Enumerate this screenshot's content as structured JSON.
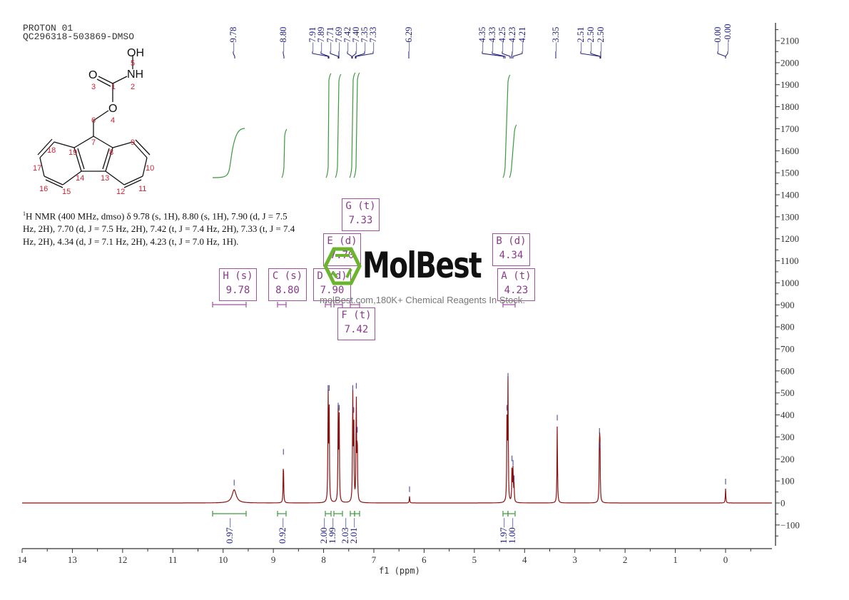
{
  "header": {
    "line1": "PROTON 01",
    "line2": "QC296318-503869-DMSO"
  },
  "structure": {
    "name": "fmoc-hydroxylamine-structure",
    "atoms": {
      "OH": "OH",
      "NH": "NH",
      "O_carbonyl": "O",
      "O_ester": "O",
      "labels": [
        "1",
        "2",
        "3",
        "4",
        "5",
        "6",
        "7",
        "8",
        "9",
        "10",
        "11",
        "12",
        "13",
        "14",
        "15",
        "16",
        "17",
        "18",
        "19"
      ]
    }
  },
  "description": {
    "prefix_sup": "1",
    "text": "H NMR (400 MHz, dmso) δ 9.78 (s, 1H), 8.80 (s, 1H), 7.90 (d, J = 7.5 Hz, 2H), 7.70 (d, J = 7.5 Hz, 2H), 7.42 (t, J = 7.4 Hz, 2H), 7.33 (t, J = 7.4 Hz, 2H), 4.34 (d, J = 7.1 Hz, 2H), 4.23 (t, J = 7.0 Hz, 1H)."
  },
  "peak_labels": [
    {
      "text": "9.78",
      "ppm": 9.78
    },
    {
      "text": "8.80",
      "ppm": 8.8
    },
    {
      "text": "7.91",
      "ppm": 7.91
    },
    {
      "text": "7.89",
      "ppm": 7.89
    },
    {
      "text": "7.71",
      "ppm": 7.71
    },
    {
      "text": "7.69",
      "ppm": 7.69
    },
    {
      "text": "7.42",
      "ppm": 7.42
    },
    {
      "text": "7.40",
      "ppm": 7.4
    },
    {
      "text": "7.35",
      "ppm": 7.35
    },
    {
      "text": "7.33",
      "ppm": 7.33
    },
    {
      "text": "6.29",
      "ppm": 6.29
    },
    {
      "text": "4.35",
      "ppm": 4.35
    },
    {
      "text": "4.33",
      "ppm": 4.33
    },
    {
      "text": "4.25",
      "ppm": 4.25
    },
    {
      "text": "4.23",
      "ppm": 4.23
    },
    {
      "text": "4.21",
      "ppm": 4.21
    },
    {
      "text": "3.35",
      "ppm": 3.35
    },
    {
      "text": "2.51",
      "ppm": 2.51
    },
    {
      "text": "2.50",
      "ppm": 2.5
    },
    {
      "text": "2.50",
      "ppm": 2.5
    },
    {
      "text": "0.00",
      "ppm": 0.0
    },
    {
      "text": "-0.00",
      "ppm": -0.0
    }
  ],
  "multiplet_boxes": [
    {
      "id": "H",
      "line1": "H (s)",
      "line2": "9.78"
    },
    {
      "id": "C",
      "line1": "C (s)",
      "line2": "8.80"
    },
    {
      "id": "D",
      "line1": "D (d)",
      "line2": "7.90"
    },
    {
      "id": "E",
      "line1": "E (d)",
      "line2": "7.70"
    },
    {
      "id": "G",
      "line1": "G (t)",
      "line2": "7.33"
    },
    {
      "id": "F",
      "line1": "F (t)",
      "line2": "7.42"
    },
    {
      "id": "B",
      "line1": "B (d)",
      "line2": "4.34"
    },
    {
      "id": "A",
      "line1": "A (t)",
      "line2": "4.23"
    }
  ],
  "integrals": [
    {
      "text": "0.97",
      "ppm": 9.78
    },
    {
      "text": "0.92",
      "ppm": 8.8
    },
    {
      "text": "2.00",
      "ppm": 7.9
    },
    {
      "text": "1.99",
      "ppm": 7.7
    },
    {
      "text": "2.03",
      "ppm": 7.42
    },
    {
      "text": "2.01",
      "ppm": 7.33
    },
    {
      "text": "1.97",
      "ppm": 4.34
    },
    {
      "text": "1.00",
      "ppm": 4.23
    }
  ],
  "watermark": {
    "brand": "MolBest",
    "tagline": "molBest.com,180K+ Chemical Reagents In Stock.",
    "logo_color": "#6ab42e"
  },
  "colors": {
    "spectrum": "#8b1010",
    "integral": "#3c9a3c",
    "peak_label": "#1a1a7a",
    "multiplet_box": "#a050a0",
    "axis": "#333333"
  },
  "chart_data": {
    "type": "line",
    "title": "PROTON 01 — QC296318-503869-DMSO",
    "xlabel": "f1 (ppm)",
    "ylabel": "",
    "xlim": [
      14,
      -1
    ],
    "ylim": [
      -200,
      2150
    ],
    "x_reversed": true,
    "x_ticks": [
      14,
      13,
      12,
      11,
      10,
      9,
      8,
      7,
      6,
      5,
      4,
      3,
      2,
      1,
      0
    ],
    "y_ticks": [
      2100,
      2000,
      1900,
      1800,
      1700,
      1600,
      1500,
      1400,
      1300,
      1200,
      1100,
      1000,
      900,
      800,
      700,
      600,
      500,
      400,
      300,
      200,
      100,
      0,
      -100
    ],
    "peaks": [
      {
        "ppm": 9.78,
        "intensity": 60
      },
      {
        "ppm": 8.8,
        "intensity": 200
      },
      {
        "ppm": 7.91,
        "intensity": 490
      },
      {
        "ppm": 7.89,
        "intensity": 490
      },
      {
        "ppm": 7.71,
        "intensity": 410
      },
      {
        "ppm": 7.69,
        "intensity": 400
      },
      {
        "ppm": 7.42,
        "intensity": 490
      },
      {
        "ppm": 7.4,
        "intensity": 390
      },
      {
        "ppm": 7.35,
        "intensity": 500
      },
      {
        "ppm": 7.33,
        "intensity": 300
      },
      {
        "ppm": 6.29,
        "intensity": 30
      },
      {
        "ppm": 4.35,
        "intensity": 400
      },
      {
        "ppm": 4.33,
        "intensity": 545
      },
      {
        "ppm": 4.25,
        "intensity": 170
      },
      {
        "ppm": 4.23,
        "intensity": 150
      },
      {
        "ppm": 4.21,
        "intensity": 80
      },
      {
        "ppm": 3.35,
        "intensity": 355
      },
      {
        "ppm": 2.51,
        "intensity": 295
      },
      {
        "ppm": 2.5,
        "intensity": 230
      },
      {
        "ppm": 0.0,
        "intensity": 65
      }
    ],
    "integrals": [
      {
        "ppm_range": [
          10.2,
          9.55
        ],
        "value": 0.97
      },
      {
        "ppm_range": [
          8.85,
          8.74
        ],
        "value": 0.92
      },
      {
        "ppm_range": [
          7.95,
          7.85
        ],
        "value": 2.0
      },
      {
        "ppm_range": [
          7.75,
          7.65
        ],
        "value": 1.99
      },
      {
        "ppm_range": [
          7.46,
          7.37
        ],
        "value": 2.03
      },
      {
        "ppm_range": [
          7.37,
          7.28
        ],
        "value": 2.01
      },
      {
        "ppm_range": [
          4.4,
          4.29
        ],
        "value": 1.97
      },
      {
        "ppm_range": [
          4.29,
          4.17
        ],
        "value": 1.0
      }
    ],
    "annotations": [
      "H (s) 9.78",
      "C (s) 8.80",
      "D (d) 7.90",
      "E (d) 7.70",
      "G (t) 7.33",
      "F (t) 7.42",
      "B (d) 4.34",
      "A (t) 4.23"
    ]
  }
}
